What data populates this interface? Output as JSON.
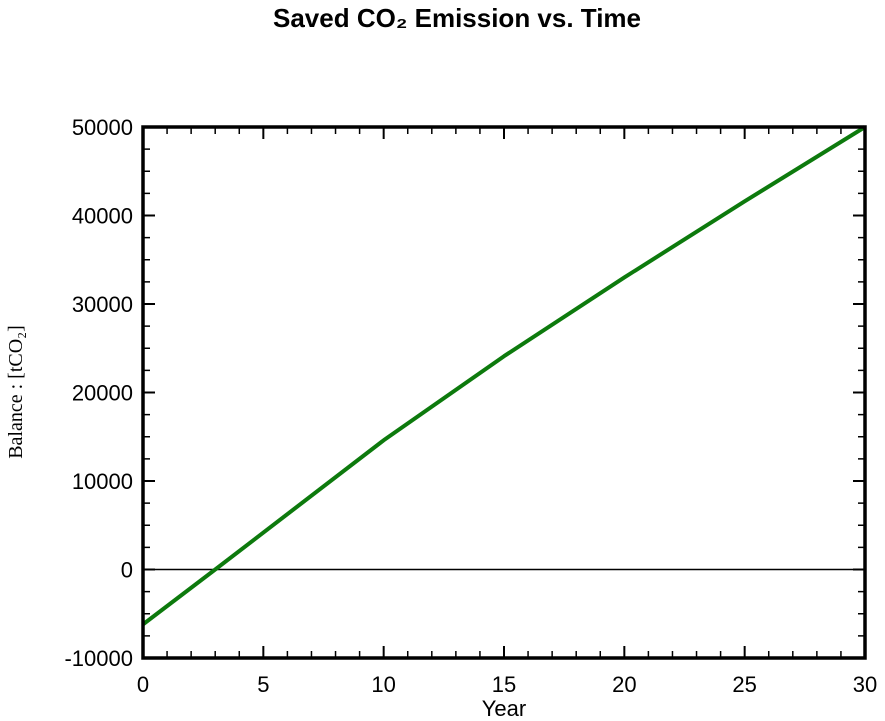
{
  "chart_data": {
    "type": "line",
    "title": "Saved CO₂ Emission vs. Time",
    "xlabel": "Year",
    "ylabel": "Balance : [tCO₂]",
    "xlim": [
      0,
      30
    ],
    "ylim": [
      -10000,
      50000
    ],
    "x_ticks": [
      0,
      5,
      10,
      15,
      20,
      25,
      30
    ],
    "y_ticks": [
      -10000,
      0,
      10000,
      20000,
      30000,
      40000,
      50000
    ],
    "x_tick_labels": [
      "0",
      "5",
      "10",
      "15",
      "20",
      "25",
      "30"
    ],
    "y_tick_labels": [
      "-10000",
      "0",
      "10000",
      "20000",
      "30000",
      "40000",
      "50000"
    ],
    "grid": false,
    "zero_line": true,
    "series": [
      {
        "color": "#0d7a0d",
        "x": [
          0,
          3,
          10,
          15,
          20,
          25,
          30
        ],
        "y": [
          -6200,
          0,
          14600,
          24100,
          33000,
          41600,
          50000
        ]
      }
    ]
  }
}
